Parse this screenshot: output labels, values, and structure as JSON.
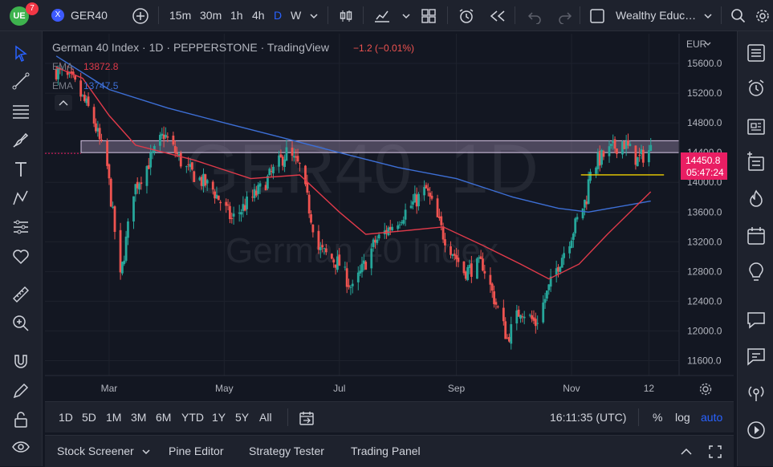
{
  "topbar": {
    "badge_count": "7",
    "symbol": "GER40",
    "intervals": [
      "15m",
      "30m",
      "1h",
      "4h",
      "D",
      "W"
    ],
    "active_interval": "D",
    "account": "Wealthy Educ…"
  },
  "legend": {
    "title": "German 40 Index · 1D · PEPPERSTONE · TradingView",
    "change": "−1.2 (−0.01%)",
    "ema1_label": "EMA",
    "ema1_value": "13872.8",
    "ema2_label": "EMA",
    "ema2_value": "13747.5"
  },
  "watermark": {
    "symbol": "GER40, 1D",
    "name": "German 40 Index"
  },
  "price_axis": {
    "currency": "EUR",
    "current_price": "14450.8",
    "countdown": "05:47:24"
  },
  "bottom": {
    "ranges": [
      "1D",
      "5D",
      "1M",
      "3M",
      "6M",
      "YTD",
      "1Y",
      "5Y",
      "All"
    ],
    "time": "16:11:35 (UTC)",
    "percent": "%",
    "log": "log",
    "auto": "auto"
  },
  "panels": [
    "Stock Screener",
    "Pine Editor",
    "Strategy Tester",
    "Trading Panel"
  ],
  "colors": {
    "up": "#26a69a",
    "down": "#ef5350",
    "ema_fast": "#e03a4a",
    "ema_slow": "#3d6fd6",
    "zone": "#b6a0c8",
    "support": "#f0d000",
    "accent": "#2962ff",
    "price_label": "#e91e63"
  },
  "chart_data": {
    "type": "candlestick",
    "symbol": "GER40",
    "timeframe": "1D",
    "ylim": [
      11400,
      16000
    ],
    "y_ticks": [
      15600,
      15200,
      14800,
      14400,
      14000,
      13600,
      13200,
      12800,
      12400,
      12000,
      11600
    ],
    "x_ticks": [
      "Mar",
      "May",
      "Jul",
      "Sep",
      "Nov",
      "12"
    ],
    "close_series": [
      {
        "t": "2022-02-01",
        "v": 15500
      },
      {
        "t": "2022-02-10",
        "v": 15350
      },
      {
        "t": "2022-02-20",
        "v": 14900
      },
      {
        "t": "2022-02-28",
        "v": 14200
      },
      {
        "t": "2022-03-07",
        "v": 12700
      },
      {
        "t": "2022-03-14",
        "v": 13900
      },
      {
        "t": "2022-03-25",
        "v": 14400
      },
      {
        "t": "2022-03-30",
        "v": 14650
      },
      {
        "t": "2022-04-10",
        "v": 14200
      },
      {
        "t": "2022-04-25",
        "v": 13900
      },
      {
        "t": "2022-05-05",
        "v": 13500
      },
      {
        "t": "2022-05-20",
        "v": 13900
      },
      {
        "t": "2022-06-03",
        "v": 14400
      },
      {
        "t": "2022-06-10",
        "v": 14200
      },
      {
        "t": "2022-06-20",
        "v": 13100
      },
      {
        "t": "2022-07-01",
        "v": 12900
      },
      {
        "t": "2022-07-08",
        "v": 12550
      },
      {
        "t": "2022-07-20",
        "v": 13200
      },
      {
        "t": "2022-08-01",
        "v": 13500
      },
      {
        "t": "2022-08-16",
        "v": 13900
      },
      {
        "t": "2022-08-25",
        "v": 13300
      },
      {
        "t": "2022-09-05",
        "v": 12800
      },
      {
        "t": "2022-09-15",
        "v": 12900
      },
      {
        "t": "2022-09-28",
        "v": 11900
      },
      {
        "t": "2022-10-05",
        "v": 12300
      },
      {
        "t": "2022-10-13",
        "v": 12100
      },
      {
        "t": "2022-10-25",
        "v": 12900
      },
      {
        "t": "2022-11-01",
        "v": 13300
      },
      {
        "t": "2022-11-09",
        "v": 13800
      },
      {
        "t": "2022-11-11",
        "v": 14200
      },
      {
        "t": "2022-11-20",
        "v": 14400
      },
      {
        "t": "2022-11-28",
        "v": 14550
      },
      {
        "t": "2022-12-06",
        "v": 14300
      },
      {
        "t": "2022-12-13",
        "v": 14450
      }
    ],
    "ema_fast": [
      {
        "t": "2022-02-01",
        "v": 15550
      },
      {
        "t": "2022-02-15",
        "v": 15400
      },
      {
        "t": "2022-03-01",
        "v": 14900
      },
      {
        "t": "2022-03-15",
        "v": 14500
      },
      {
        "t": "2022-04-15",
        "v": 14300
      },
      {
        "t": "2022-05-15",
        "v": 14050
      },
      {
        "t": "2022-06-10",
        "v": 14100
      },
      {
        "t": "2022-07-01",
        "v": 13600
      },
      {
        "t": "2022-07-15",
        "v": 13300
      },
      {
        "t": "2022-08-05",
        "v": 13350
      },
      {
        "t": "2022-08-25",
        "v": 13400
      },
      {
        "t": "2022-09-15",
        "v": 13150
      },
      {
        "t": "2022-10-05",
        "v": 12900
      },
      {
        "t": "2022-10-20",
        "v": 12700
      },
      {
        "t": "2022-11-05",
        "v": 12900
      },
      {
        "t": "2022-11-20",
        "v": 13300
      },
      {
        "t": "2022-12-13",
        "v": 13872.8
      }
    ],
    "ema_slow": [
      {
        "t": "2022-02-01",
        "v": 15700
      },
      {
        "t": "2022-03-01",
        "v": 15250
      },
      {
        "t": "2022-04-01",
        "v": 15000
      },
      {
        "t": "2022-05-01",
        "v": 14800
      },
      {
        "t": "2022-06-01",
        "v": 14600
      },
      {
        "t": "2022-07-01",
        "v": 14400
      },
      {
        "t": "2022-08-01",
        "v": 14200
      },
      {
        "t": "2022-09-01",
        "v": 14050
      },
      {
        "t": "2022-10-01",
        "v": 13800
      },
      {
        "t": "2022-10-25",
        "v": 13650
      },
      {
        "t": "2022-11-10",
        "v": 13600
      },
      {
        "t": "2022-12-13",
        "v": 13747.5
      }
    ],
    "resistance_zone": [
      14400,
      14560
    ],
    "support_line": 14100
  }
}
